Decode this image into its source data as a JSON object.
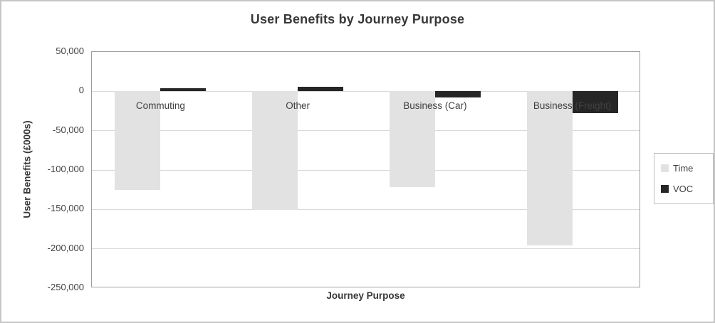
{
  "chart_data": {
    "type": "bar",
    "title": "User Benefits by Journey Purpose",
    "xlabel": "Journey Purpose",
    "ylabel": "User Benefits (£000s)",
    "categories": [
      "Commuting",
      "Other",
      "Business (Car)",
      "Business (Freight)"
    ],
    "series": [
      {
        "name": "Time",
        "color": "#e2e2e2",
        "values": [
          -125000,
          -151000,
          -122000,
          -196000
        ]
      },
      {
        "name": "VOC",
        "color": "#262626",
        "values": [
          4000,
          6000,
          -8000,
          -28000
        ]
      }
    ],
    "ylim": [
      -250000,
      50000
    ],
    "ytick_step": 50000,
    "ytick_labels": [
      "50,000",
      "0",
      "-50,000",
      "-100,000",
      "-150,000",
      "-200,000",
      "-250,000"
    ],
    "grid": true,
    "legend_position": "right"
  },
  "legend": {
    "items": [
      {
        "label": "Time",
        "color": "#e2e2e2"
      },
      {
        "label": "VOC",
        "color": "#262626"
      }
    ]
  },
  "colors": {
    "gridline": "#d9d9d9",
    "plot_border": "#9e9e9e",
    "text": "#404040",
    "title_text": "#383838",
    "time_fill": "#e2e2e2",
    "voc_fill": "#262626"
  }
}
